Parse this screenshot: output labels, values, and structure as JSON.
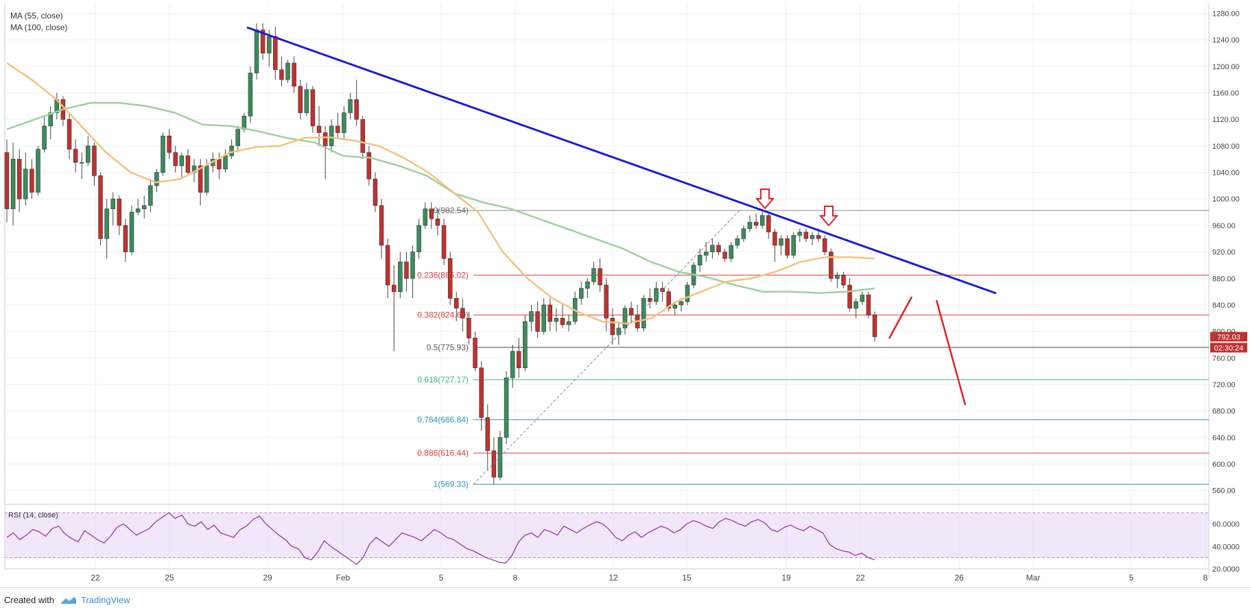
{
  "legend": {
    "ma55": "MA (55, close)",
    "ma100": "MA (100, close)",
    "rsi": "RSI (14, close)"
  },
  "footer": {
    "created_with": "Created with",
    "brand": "TradingView"
  },
  "colors": {
    "up": "#3c8c5c",
    "down": "#c1322f",
    "ma55": "#f6c27c",
    "ma100": "#9fcf9f",
    "trendline": "#1a1ad6",
    "arrow": "#e0202a",
    "rsi_line": "#8a2f9c",
    "rsi_band": "#ead6f5"
  },
  "price_axis": {
    "ticks": [
      "1280.00",
      "1240.00",
      "1200.00",
      "1160.00",
      "1120.00",
      "1080.00",
      "1040.00",
      "1000.00",
      "960.00",
      "920.00",
      "880.00",
      "840.00",
      "800.00",
      "760.00",
      "720.00",
      "680.00",
      "640.00",
      "600.00",
      "560.00"
    ],
    "last_price": "792.03",
    "countdown": "02:30:24"
  },
  "rsi_axis": {
    "ticks": [
      "60.0000",
      "40.0000",
      "20.0000"
    ]
  },
  "time_axis": {
    "labels": [
      "22",
      "25",
      "29",
      "Feb",
      "5",
      "8",
      "12",
      "15",
      "19",
      "22",
      "26",
      "Mar",
      "5",
      "8"
    ]
  },
  "chart_data": {
    "type": "candlestick",
    "ylim": [
      540,
      1295
    ],
    "rsi_ylim": [
      20,
      75
    ],
    "fib_levels": [
      {
        "label": "0(982.54)",
        "value": 982.54
      },
      {
        "label": "0.236(885.02)",
        "value": 885.02
      },
      {
        "label": "0.382(824.69)",
        "value": 824.69
      },
      {
        "label": "0.5(775.93)",
        "value": 775.93
      },
      {
        "label": "0.618(727.17)",
        "value": 727.17
      },
      {
        "label": "0.764(666.84)",
        "value": 666.84
      },
      {
        "label": "0.886(616.44)",
        "value": 616.44
      },
      {
        "label": "1(569.33)",
        "value": 569.33
      }
    ],
    "candles": [
      [
        1070,
        1090,
        965,
        985
      ],
      [
        985,
        1085,
        960,
        1060
      ],
      [
        1060,
        1075,
        980,
        1000
      ],
      [
        1000,
        1070,
        990,
        1045
      ],
      [
        1045,
        1060,
        1000,
        1010
      ],
      [
        1010,
        1080,
        1005,
        1075
      ],
      [
        1075,
        1125,
        1070,
        1110
      ],
      [
        1110,
        1140,
        1090,
        1130
      ],
      [
        1130,
        1160,
        1120,
        1150
      ],
      [
        1150,
        1155,
        1110,
        1120
      ],
      [
        1120,
        1130,
        1060,
        1075
      ],
      [
        1075,
        1090,
        1040,
        1055
      ],
      [
        1055,
        1070,
        1030,
        1055
      ],
      [
        1055,
        1095,
        1050,
        1080
      ],
      [
        1080,
        1085,
        1020,
        1035
      ],
      [
        1035,
        1040,
        930,
        940
      ],
      [
        940,
        1000,
        910,
        985
      ],
      [
        985,
        1010,
        960,
        1000
      ],
      [
        1000,
        1005,
        945,
        960
      ],
      [
        960,
        970,
        905,
        920
      ],
      [
        920,
        990,
        915,
        980
      ],
      [
        980,
        1000,
        975,
        985
      ],
      [
        985,
        1005,
        970,
        990
      ],
      [
        990,
        1030,
        980,
        1020
      ],
      [
        1020,
        1045,
        1010,
        1040
      ],
      [
        1040,
        1100,
        1035,
        1095
      ],
      [
        1095,
        1105,
        1060,
        1070
      ],
      [
        1070,
        1080,
        1040,
        1050
      ],
      [
        1050,
        1070,
        1030,
        1065
      ],
      [
        1065,
        1075,
        1035,
        1040
      ],
      [
        1040,
        1060,
        1025,
        1050
      ],
      [
        1050,
        1060,
        990,
        1010
      ],
      [
        1010,
        1060,
        1005,
        1050
      ],
      [
        1050,
        1070,
        1040,
        1060
      ],
      [
        1060,
        1070,
        1030,
        1045
      ],
      [
        1045,
        1075,
        1040,
        1065
      ],
      [
        1065,
        1090,
        1060,
        1080
      ],
      [
        1080,
        1110,
        1070,
        1105
      ],
      [
        1105,
        1130,
        1100,
        1125
      ],
      [
        1125,
        1200,
        1115,
        1190
      ],
      [
        1190,
        1265,
        1180,
        1255
      ],
      [
        1255,
        1265,
        1210,
        1220
      ],
      [
        1220,
        1255,
        1200,
        1245
      ],
      [
        1245,
        1260,
        1180,
        1195
      ],
      [
        1195,
        1215,
        1170,
        1180
      ],
      [
        1180,
        1210,
        1175,
        1205
      ],
      [
        1205,
        1215,
        1160,
        1170
      ],
      [
        1170,
        1180,
        1120,
        1130
      ],
      [
        1130,
        1175,
        1125,
        1165
      ],
      [
        1165,
        1170,
        1100,
        1110
      ],
      [
        1110,
        1140,
        1080,
        1100
      ],
      [
        1100,
        1110,
        1030,
        1080
      ],
      [
        1080,
        1120,
        1070,
        1110
      ],
      [
        1110,
        1130,
        1090,
        1100
      ],
      [
        1100,
        1140,
        1090,
        1130
      ],
      [
        1130,
        1160,
        1120,
        1150
      ],
      [
        1150,
        1180,
        1110,
        1120
      ],
      [
        1120,
        1125,
        1060,
        1070
      ],
      [
        1070,
        1080,
        1020,
        1030
      ],
      [
        1030,
        1040,
        980,
        990
      ],
      [
        990,
        1000,
        910,
        930
      ],
      [
        930,
        940,
        850,
        870
      ],
      [
        870,
        900,
        770,
        860
      ],
      [
        860,
        920,
        850,
        905
      ],
      [
        905,
        920,
        860,
        880
      ],
      [
        880,
        930,
        850,
        920
      ],
      [
        920,
        970,
        910,
        960
      ],
      [
        960,
        995,
        955,
        985
      ],
      [
        985,
        995,
        955,
        970
      ],
      [
        970,
        985,
        945,
        960
      ],
      [
        960,
        970,
        900,
        910
      ],
      [
        910,
        920,
        840,
        850
      ],
      [
        850,
        860,
        815,
        835
      ],
      [
        835,
        850,
        800,
        820
      ],
      [
        820,
        830,
        780,
        790
      ],
      [
        790,
        800,
        740,
        745
      ],
      [
        745,
        755,
        650,
        670
      ],
      [
        670,
        690,
        590,
        620
      ],
      [
        620,
        640,
        569,
        580
      ],
      [
        580,
        650,
        575,
        640
      ],
      [
        640,
        740,
        630,
        730
      ],
      [
        730,
        780,
        715,
        770
      ],
      [
        770,
        790,
        730,
        745
      ],
      [
        745,
        825,
        740,
        815
      ],
      [
        815,
        840,
        800,
        830
      ],
      [
        830,
        845,
        790,
        800
      ],
      [
        800,
        850,
        795,
        840
      ],
      [
        840,
        850,
        800,
        815
      ],
      [
        815,
        835,
        800,
        820
      ],
      [
        820,
        840,
        805,
        810
      ],
      [
        810,
        825,
        800,
        815
      ],
      [
        815,
        860,
        810,
        850
      ],
      [
        850,
        875,
        840,
        865
      ],
      [
        865,
        880,
        850,
        875
      ],
      [
        875,
        905,
        870,
        895
      ],
      [
        895,
        910,
        860,
        870
      ],
      [
        870,
        880,
        800,
        820
      ],
      [
        820,
        835,
        780,
        795
      ],
      [
        795,
        815,
        780,
        805
      ],
      [
        805,
        840,
        795,
        835
      ],
      [
        835,
        845,
        815,
        825
      ],
      [
        825,
        840,
        800,
        805
      ],
      [
        805,
        855,
        800,
        850
      ],
      [
        850,
        865,
        835,
        845
      ],
      [
        845,
        875,
        840,
        865
      ],
      [
        865,
        875,
        845,
        860
      ],
      [
        860,
        865,
        830,
        835
      ],
      [
        835,
        845,
        825,
        840
      ],
      [
        840,
        850,
        830,
        845
      ],
      [
        845,
        875,
        840,
        870
      ],
      [
        870,
        905,
        865,
        900
      ],
      [
        900,
        925,
        890,
        915
      ],
      [
        915,
        935,
        905,
        920
      ],
      [
        920,
        940,
        910,
        930
      ],
      [
        930,
        935,
        915,
        920
      ],
      [
        920,
        925,
        905,
        910
      ],
      [
        910,
        935,
        905,
        930
      ],
      [
        930,
        945,
        925,
        940
      ],
      [
        940,
        960,
        935,
        955
      ],
      [
        955,
        975,
        950,
        965
      ],
      [
        965,
        978,
        955,
        960
      ],
      [
        960,
        982,
        955,
        975
      ],
      [
        975,
        980,
        940,
        950
      ],
      [
        950,
        955,
        905,
        930
      ],
      [
        930,
        945,
        915,
        940
      ],
      [
        940,
        945,
        910,
        915
      ],
      [
        915,
        950,
        910,
        945
      ],
      [
        945,
        955,
        935,
        950
      ],
      [
        950,
        955,
        935,
        940
      ],
      [
        940,
        950,
        930,
        945
      ],
      [
        945,
        955,
        935,
        940
      ],
      [
        940,
        945,
        915,
        920
      ],
      [
        920,
        925,
        875,
        880
      ],
      [
        880,
        890,
        865,
        885
      ],
      [
        885,
        890,
        865,
        870
      ],
      [
        870,
        880,
        830,
        835
      ],
      [
        835,
        850,
        820,
        845
      ],
      [
        845,
        860,
        840,
        855
      ],
      [
        855,
        860,
        820,
        825
      ],
      [
        825,
        830,
        785,
        792
      ]
    ],
    "ma55": [
      [
        1205,
        [
          7,
          43
        ]
      ],
      [
        1180,
        [
          7,
          75
        ]
      ],
      [
        1150,
        [
          7,
          108
        ]
      ],
      [
        1110,
        [
          7,
          145
        ]
      ],
      [
        1070,
        [
          7,
          182
        ]
      ],
      [
        1040,
        [
          7,
          220
        ]
      ],
      [
        1025,
        [
          7,
          265
        ]
      ],
      [
        1030,
        [
          7,
          300
        ]
      ],
      [
        1050,
        [
          7,
          335
        ]
      ],
      [
        1070,
        [
          7,
          370
        ]
      ],
      [
        1078,
        [
          7,
          400
        ]
      ],
      [
        1080,
        [
          7,
          425
        ]
      ],
      [
        1092,
        [
          7,
          455
        ]
      ],
      [
        1093,
        [
          7,
          475
        ]
      ],
      [
        1088,
        [
          7,
          500
        ]
      ],
      [
        1080,
        [
          7,
          520
        ]
      ],
      [
        1062,
        [
          7,
          550
        ]
      ],
      [
        1040,
        [
          7,
          580
        ]
      ],
      [
        1010,
        [
          7,
          605
        ]
      ],
      [
        980,
        [
          7,
          625
        ]
      ],
      [
        920,
        [
          7,
          680
        ]
      ],
      [
        880,
        [
          7,
          720
        ]
      ],
      [
        850,
        [
          7,
          760
        ]
      ],
      [
        830,
        [
          7,
          800
        ]
      ],
      [
        815,
        [
          7,
          830
        ]
      ],
      [
        812,
        [
          7,
          850
        ]
      ],
      [
        820,
        [
          7,
          870
        ]
      ],
      [
        845,
        [
          7,
          900
        ]
      ],
      [
        860,
        [
          7,
          930
        ]
      ],
      [
        875,
        [
          7,
          960
        ]
      ],
      [
        880,
        [
          7,
          990
        ]
      ],
      [
        890,
        [
          7,
          1010
        ]
      ],
      [
        905,
        [
          7,
          1040
        ]
      ],
      [
        912,
        [
          7,
          1060
        ]
      ],
      [
        912,
        [
          7,
          1080
        ]
      ],
      [
        910,
        [
          7,
          1100
        ]
      ]
    ],
    "ma100": [
      [
        1105,
        [
          7,
          5
        ]
      ],
      [
        1120,
        [
          7,
          40
        ]
      ],
      [
        1135,
        [
          7,
          90
        ]
      ],
      [
        1145,
        [
          7,
          140
        ]
      ],
      [
        1145,
        [
          7,
          180
        ]
      ],
      [
        1140,
        [
          7,
          215
        ]
      ],
      [
        1130,
        [
          7,
          260
        ]
      ],
      [
        1112,
        [
          7,
          310
        ]
      ],
      [
        1110,
        [
          7,
          340
        ]
      ],
      [
        1102,
        [
          7,
          380
        ]
      ],
      [
        1092,
        [
          7,
          420
        ]
      ],
      [
        1085,
        [
          7,
          440
        ]
      ],
      [
        1065,
        [
          7,
          480
        ]
      ],
      [
        1062,
        [
          7,
          520
        ]
      ],
      [
        1050,
        [
          7,
          550
        ]
      ],
      [
        1035,
        [
          7,
          580
        ]
      ],
      [
        1008,
        [
          7,
          610
        ]
      ],
      [
        995,
        [
          7,
          640
        ]
      ],
      [
        985,
        [
          7,
          680
        ]
      ],
      [
        970,
        [
          7,
          720
        ]
      ],
      [
        955,
        [
          7,
          760
        ]
      ],
      [
        940,
        [
          7,
          800
        ]
      ],
      [
        925,
        [
          7,
          840
        ]
      ],
      [
        905,
        [
          7,
          880
        ]
      ],
      [
        890,
        [
          7,
          910
        ]
      ],
      [
        882,
        [
          7,
          940
        ]
      ],
      [
        870,
        [
          7,
          970
        ]
      ],
      [
        860,
        [
          7,
          1000
        ]
      ],
      [
        860,
        [
          7,
          1030
        ]
      ],
      [
        858,
        [
          7,
          1060
        ]
      ],
      [
        860,
        [
          7,
          1080
        ]
      ],
      [
        865,
        [
          7,
          1100
        ]
      ]
    ],
    "rsi": [
      48,
      52,
      46,
      50,
      55,
      53,
      49,
      56,
      58,
      51,
      47,
      44,
      54,
      50,
      46,
      43,
      49,
      57,
      60,
      55,
      50,
      53,
      56,
      62,
      66,
      70,
      65,
      68,
      60,
      58,
      62,
      55,
      59,
      52,
      50,
      48,
      55,
      58,
      64,
      67,
      60,
      55,
      50,
      46,
      40,
      38,
      30,
      28,
      35,
      45,
      40,
      36,
      32,
      28,
      24,
      30,
      42,
      48,
      44,
      40,
      46,
      52,
      50,
      48,
      45,
      50,
      55,
      52,
      48,
      46,
      42,
      38,
      36,
      33,
      30,
      28,
      26,
      25,
      32,
      44,
      50,
      52,
      48,
      55,
      53,
      50,
      58,
      55,
      52,
      56,
      59,
      62,
      60,
      55,
      48,
      45,
      50,
      53,
      48,
      52,
      55,
      58,
      56,
      52,
      55,
      60,
      63,
      61,
      58,
      56,
      62,
      65,
      63,
      60,
      58,
      62,
      64,
      61,
      55,
      53,
      57,
      59,
      56,
      54,
      58,
      55,
      52,
      42,
      38,
      36,
      35,
      32,
      34,
      30,
      28
    ]
  }
}
